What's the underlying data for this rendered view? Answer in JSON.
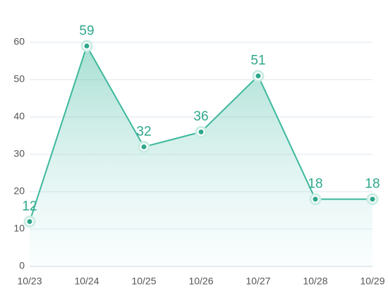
{
  "chart_data": {
    "type": "line",
    "categories": [
      "10/23",
      "10/24",
      "10/25",
      "10/26",
      "10/27",
      "10/28",
      "10/29"
    ],
    "values": [
      12,
      59,
      32,
      36,
      51,
      18,
      18
    ],
    "color": "#3cb89c",
    "ylim": [
      0,
      60
    ],
    "yticks": [
      0,
      10,
      20,
      30,
      40,
      50,
      60
    ],
    "grid": true
  }
}
